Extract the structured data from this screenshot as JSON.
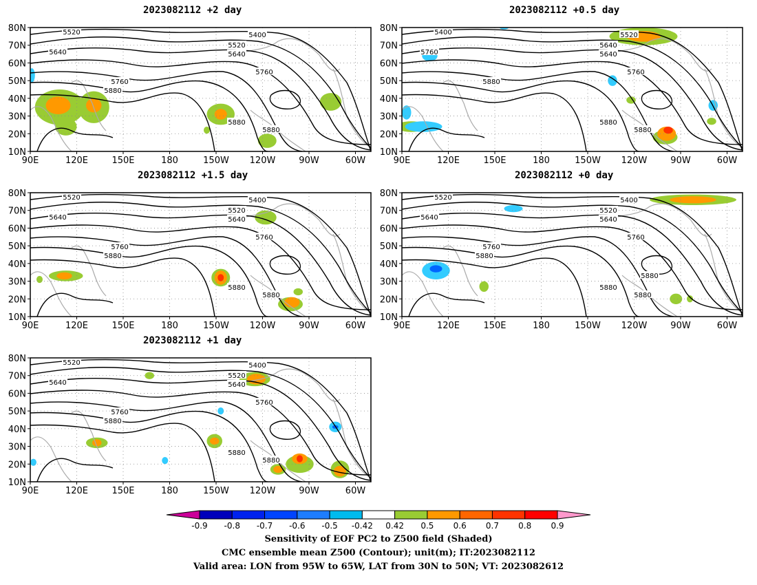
{
  "map": {
    "lat_labels": [
      "10N",
      "20N",
      "30N",
      "40N",
      "50N",
      "60N",
      "70N",
      "80N"
    ],
    "lon_labels": [
      "90E",
      "120E",
      "150E",
      "180",
      "150W",
      "120W",
      "90W",
      "60W"
    ],
    "panels": [
      {
        "title": "2023082112 +2 day",
        "contour_labels": [
          "5520",
          "5400",
          "5520",
          "5640",
          "5640",
          "5760",
          "5760",
          "5880",
          "5880",
          "5880"
        ],
        "shading": [
          {
            "color": "#99cc33",
            "lon": 109,
            "lat": 35,
            "rx": 16,
            "ry": 10
          },
          {
            "color": "#ff9900",
            "lon": 108,
            "lat": 36,
            "rx": 8,
            "ry": 5
          },
          {
            "color": "#99cc33",
            "lon": 131,
            "lat": 35,
            "rx": 10,
            "ry": 9
          },
          {
            "color": "#ff9900",
            "lon": 131,
            "lat": 36,
            "rx": 5,
            "ry": 4
          },
          {
            "color": "#99cc33",
            "lon": 113,
            "lat": 24,
            "rx": 7,
            "ry": 5
          },
          {
            "color": "#99cc33",
            "lon": 213,
            "lat": 31,
            "rx": 9,
            "ry": 6
          },
          {
            "color": "#ff9900",
            "lon": 213,
            "lat": 31,
            "rx": 4,
            "ry": 3
          },
          {
            "color": "#99cc33",
            "lon": 243,
            "lat": 16,
            "rx": 6,
            "ry": 4
          },
          {
            "color": "#99cc33",
            "lon": 284,
            "lat": 38,
            "rx": 7,
            "ry": 5
          },
          {
            "color": "#33ccff",
            "lon": 91,
            "lat": 53,
            "rx": 2,
            "ry": 4
          },
          {
            "color": "#99cc33",
            "lon": 204,
            "lat": 22,
            "rx": 2,
            "ry": 2
          }
        ]
      },
      {
        "title": "2023082112 +0.5 day",
        "contour_labels": [
          "5400",
          "5520",
          "5640",
          "5640",
          "5760",
          "5760",
          "5880",
          "5880",
          "5880"
        ],
        "shading": [
          {
            "color": "#99cc33",
            "lon": 246,
            "lat": 75,
            "rx": 22,
            "ry": 5
          },
          {
            "color": "#ff9900",
            "lon": 246,
            "lat": 75,
            "rx": 11,
            "ry": 3
          },
          {
            "color": "#99cc33",
            "lon": 96,
            "lat": 24,
            "rx": 10,
            "ry": 3
          },
          {
            "color": "#33ccff",
            "lon": 104,
            "lat": 24,
            "rx": 12,
            "ry": 3
          },
          {
            "color": "#33ccff",
            "lon": 108,
            "lat": 64,
            "rx": 5,
            "ry": 3
          },
          {
            "color": "#33ccff",
            "lon": 93,
            "lat": 32,
            "rx": 3,
            "ry": 4
          },
          {
            "color": "#33ccff",
            "lon": 226,
            "lat": 50,
            "rx": 3,
            "ry": 3
          },
          {
            "color": "#99cc33",
            "lon": 260,
            "lat": 18,
            "rx": 8,
            "ry": 4
          },
          {
            "color": "#ff9900",
            "lon": 261,
            "lat": 20,
            "rx": 6,
            "ry": 4
          },
          {
            "color": "#ff3300",
            "lon": 262,
            "lat": 22,
            "rx": 3,
            "ry": 2
          },
          {
            "color": "#33ccff",
            "lon": 291,
            "lat": 36,
            "rx": 3,
            "ry": 3
          },
          {
            "color": "#99cc33",
            "lon": 290,
            "lat": 27,
            "rx": 3,
            "ry": 2
          },
          {
            "color": "#99cc33",
            "lon": 238,
            "lat": 39,
            "rx": 3,
            "ry": 2
          },
          {
            "color": "#33ccff",
            "lon": 156,
            "lat": 80,
            "rx": 3,
            "ry": 1
          }
        ]
      },
      {
        "title": "2023082112 +1.5 day",
        "contour_labels": [
          "5520",
          "5400",
          "5520",
          "5640",
          "5640",
          "5760",
          "5760",
          "5880",
          "5880",
          "5880"
        ],
        "shading": [
          {
            "color": "#99cc33",
            "lon": 242,
            "lat": 66,
            "rx": 7,
            "ry": 4
          },
          {
            "color": "#99cc33",
            "lon": 113,
            "lat": 33,
            "rx": 11,
            "ry": 3
          },
          {
            "color": "#ff9900",
            "lon": 112,
            "lat": 33,
            "rx": 5,
            "ry": 2
          },
          {
            "color": "#99cc33",
            "lon": 213,
            "lat": 32,
            "rx": 6,
            "ry": 5
          },
          {
            "color": "#ff9900",
            "lon": 213,
            "lat": 32,
            "rx": 4,
            "ry": 4
          },
          {
            "color": "#ff3300",
            "lon": 213,
            "lat": 32,
            "rx": 2,
            "ry": 2
          },
          {
            "color": "#99cc33",
            "lon": 258,
            "lat": 17,
            "rx": 8,
            "ry": 4
          },
          {
            "color": "#ff9900",
            "lon": 259,
            "lat": 18,
            "rx": 5,
            "ry": 3
          },
          {
            "color": "#99cc33",
            "lon": 263,
            "lat": 24,
            "rx": 3,
            "ry": 2
          },
          {
            "color": "#99cc33",
            "lon": 96,
            "lat": 31,
            "rx": 2,
            "ry": 2
          }
        ]
      },
      {
        "title": "2023082112 +0 day",
        "contour_labels": [
          "5520",
          "5400",
          "5520",
          "5640",
          "5640",
          "5760",
          "5760",
          "5880",
          "5880",
          "5880",
          "5880"
        ],
        "shading": [
          {
            "color": "#99cc33",
            "lon": 278,
            "lat": 76,
            "rx": 28,
            "ry": 3
          },
          {
            "color": "#ff9900",
            "lon": 278,
            "lat": 76,
            "rx": 15,
            "ry": 2
          },
          {
            "color": "#33ccff",
            "lon": 112,
            "lat": 36,
            "rx": 9,
            "ry": 5
          },
          {
            "color": "#0066ff",
            "lon": 112,
            "lat": 37,
            "rx": 4,
            "ry": 2
          },
          {
            "color": "#33ccff",
            "lon": 162,
            "lat": 71,
            "rx": 6,
            "ry": 2
          },
          {
            "color": "#99cc33",
            "lon": 143,
            "lat": 27,
            "rx": 3,
            "ry": 3
          },
          {
            "color": "#99cc33",
            "lon": 267,
            "lat": 20,
            "rx": 4,
            "ry": 3
          },
          {
            "color": "#99cc33",
            "lon": 276,
            "lat": 20,
            "rx": 2,
            "ry": 2
          }
        ]
      },
      {
        "title": "2023082112 +1 day",
        "contour_labels": [
          "5520",
          "5400",
          "5520",
          "5640",
          "5640",
          "5760",
          "5760",
          "5880",
          "5880",
          "5880"
        ],
        "shading": [
          {
            "color": "#99cc33",
            "lon": 235,
            "lat": 68,
            "rx": 10,
            "ry": 4
          },
          {
            "color": "#ff9900",
            "lon": 236,
            "lat": 68,
            "rx": 6,
            "ry": 3
          },
          {
            "color": "#99cc33",
            "lon": 133,
            "lat": 32,
            "rx": 7,
            "ry": 3
          },
          {
            "color": "#ff9900",
            "lon": 133,
            "lat": 32,
            "rx": 3,
            "ry": 2
          },
          {
            "color": "#99cc33",
            "lon": 209,
            "lat": 33,
            "rx": 5,
            "ry": 4
          },
          {
            "color": "#ff9900",
            "lon": 209,
            "lat": 33,
            "rx": 3,
            "ry": 2
          },
          {
            "color": "#99cc33",
            "lon": 264,
            "lat": 20,
            "rx": 9,
            "ry": 5
          },
          {
            "color": "#ff9900",
            "lon": 264,
            "lat": 23,
            "rx": 5,
            "ry": 3
          },
          {
            "color": "#ff3300",
            "lon": 264,
            "lat": 23,
            "rx": 2,
            "ry": 2
          },
          {
            "color": "#99cc33",
            "lon": 250,
            "lat": 17,
            "rx": 5,
            "ry": 3
          },
          {
            "color": "#ff9900",
            "lon": 250,
            "lat": 17,
            "rx": 3,
            "ry": 2
          },
          {
            "color": "#33ccff",
            "lon": 287,
            "lat": 41,
            "rx": 4,
            "ry": 3
          },
          {
            "color": "#0066ff",
            "lon": 287,
            "lat": 41,
            "rx": 2,
            "ry": 1
          },
          {
            "color": "#99cc33",
            "lon": 290,
            "lat": 17,
            "rx": 6,
            "ry": 5
          },
          {
            "color": "#ff9900",
            "lon": 290,
            "lat": 16,
            "rx": 4,
            "ry": 3
          },
          {
            "color": "#33ccff",
            "lon": 213,
            "lat": 50,
            "rx": 2,
            "ry": 2
          },
          {
            "color": "#33ccff",
            "lon": 177,
            "lat": 22,
            "rx": 2,
            "ry": 2
          },
          {
            "color": "#99cc33",
            "lon": 167,
            "lat": 70,
            "rx": 3,
            "ry": 2
          },
          {
            "color": "#33ccff",
            "lon": 92,
            "lat": 21,
            "rx": 2,
            "ry": 2
          }
        ]
      }
    ]
  },
  "colorbar": {
    "labels": [
      "-0.9",
      "-0.8",
      "-0.7",
      "-0.6",
      "-0.5",
      "-0.42",
      "0.42",
      "0.5",
      "0.6",
      "0.7",
      "0.8",
      "0.9"
    ],
    "colors": [
      "#cc0099",
      "#0000bb",
      "#0022ee",
      "#0044ff",
      "#1e7dff",
      "#00bbee",
      "#ffffff",
      "#99cc33",
      "#ff9900",
      "#ff6600",
      "#ff3300",
      "#ff0000",
      "#ff99cc"
    ]
  },
  "captions": {
    "line1": "Sensitivity of EOF PC2 to Z500 field (Shaded)",
    "line2": "CMC ensemble mean Z500 (Contour); unit(m); IT:2023082112",
    "line3": "Valid area: LON from 95W to 65W, LAT from 30N to 50N; VT: 2023082612"
  }
}
